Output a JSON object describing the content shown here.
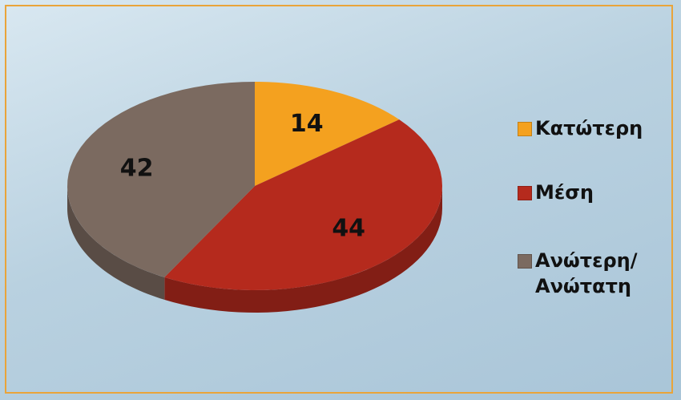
{
  "chart_data": {
    "type": "pie",
    "categories": [
      "Κατώτερη",
      "Μέση",
      "Ανώτερη/ Ανώτατη"
    ],
    "values": [
      14,
      44,
      42
    ],
    "colors": [
      "#f4a11f",
      "#b52a1d",
      "#7b6a60"
    ],
    "legend": "right"
  }
}
